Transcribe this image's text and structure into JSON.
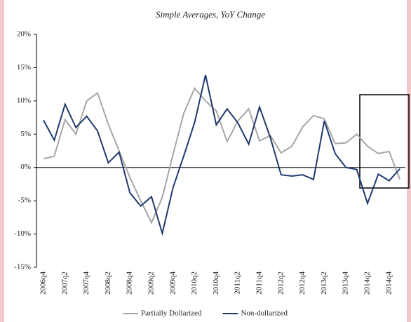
{
  "chart_data": {
    "type": "line",
    "title": "Simple Averages, YoY Change",
    "categories": [
      "2006q4",
      null,
      "2007q2",
      null,
      "2007q4",
      null,
      "2008q2",
      null,
      "2008q4",
      null,
      "2009q2",
      null,
      "2009q4",
      null,
      "2010q2",
      null,
      "2010q4",
      null,
      "2011q2",
      null,
      "2011q4",
      null,
      "2012q2",
      null,
      "2012q4",
      null,
      "2013q2",
      null,
      "2013q4",
      null,
      "2014q2",
      null,
      "2014q4",
      null
    ],
    "series": [
      {
        "name": "Partially Dollarized",
        "color": "#a6a6a6",
        "values": [
          1.3,
          1.7,
          7.2,
          5.0,
          10.0,
          11.2,
          6.5,
          2.5,
          -1.5,
          -5.0,
          -8.3,
          -4.5,
          2.0,
          8.2,
          11.9,
          10.0,
          8.5,
          3.9,
          7.0,
          8.8,
          4.0,
          4.8,
          2.2,
          3.2,
          6.1,
          7.8,
          7.3,
          3.6,
          3.7,
          5.0,
          3.2,
          2.1,
          2.4,
          -1.8
        ]
      },
      {
        "name": "Non-dollarized",
        "color": "#1f3a6e",
        "values": [
          7.1,
          4.1,
          9.5,
          6.0,
          7.7,
          5.5,
          0.7,
          2.3,
          -3.8,
          -5.8,
          -4.4,
          -9.9,
          -3.0,
          1.8,
          6.8,
          13.9,
          6.4,
          8.8,
          6.7,
          3.5,
          9.1,
          4.5,
          -1.1,
          -1.3,
          -1.1,
          -1.8,
          7.0,
          2.1,
          0.0,
          -0.3,
          -5.4,
          -1.0,
          -2.0,
          -0.2
        ]
      }
    ],
    "ylim": [
      -15,
      20
    ],
    "yticks": [
      {
        "value": -15,
        "label": "-15%"
      },
      {
        "value": -10,
        "label": "-10%"
      },
      {
        "value": -5,
        "label": "-5%"
      },
      {
        "value": 0,
        "label": "0%"
      },
      {
        "value": 5,
        "label": "5%"
      },
      {
        "value": 10,
        "label": "10%"
      },
      {
        "value": 15,
        "label": "15%"
      },
      {
        "value": 20,
        "label": "20%"
      }
    ],
    "legend": "bottom"
  }
}
